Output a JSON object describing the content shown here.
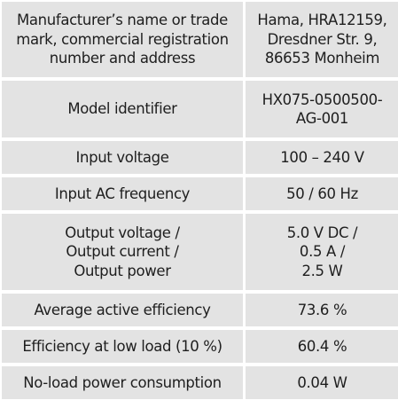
{
  "spec_table": {
    "rows": [
      {
        "label": "Manufacturer’s name or trade\nmark, commercial registration\nnumber and address",
        "value": "Hama, HRA12159,\nDresdner Str. 9,\n86653 Monheim"
      },
      {
        "label": "Model identifier",
        "value": "HX075-0500500-\nAG-001"
      },
      {
        "label": "Input voltage",
        "value": "100 – 240 V"
      },
      {
        "label": "Input AC frequency",
        "value": "50 / 60 Hz"
      },
      {
        "label": "Output voltage /\nOutput current /\nOutput power",
        "value": "5.0 V DC /\n0.5 A /\n2.5 W"
      },
      {
        "label": "Average active efficiency",
        "value": "73.6 %"
      },
      {
        "label": "Efficiency at low load (10 %)",
        "value": "60.4 %"
      },
      {
        "label": "No-load power consumption",
        "value": "0.04 W"
      }
    ]
  }
}
